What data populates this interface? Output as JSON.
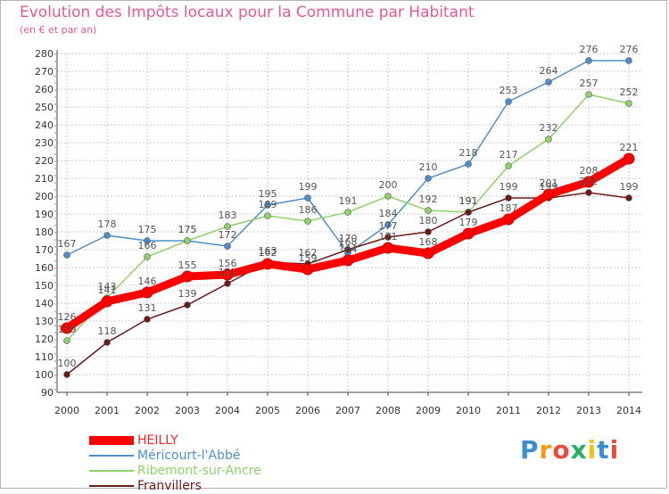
{
  "title": "Evolution des Impôts locaux pour la Commune par Habitant",
  "subtitle": "(en € et par an)",
  "logo": {
    "text": "Proxiti",
    "colors": [
      "#3b8ed6",
      "#f39c12",
      "#e74c3c",
      "#27ae60",
      "#f1c40f",
      "#3b8ed6",
      "#e74c3c"
    ]
  },
  "chart_data": {
    "type": "line",
    "x": [
      "2000",
      "2001",
      "2002",
      "2003",
      "2004",
      "2005",
      "2006",
      "2007",
      "2008",
      "2009",
      "2010",
      "2011",
      "2012",
      "2013",
      "2014"
    ],
    "ylim": [
      90,
      280
    ],
    "yticks": [
      90,
      100,
      110,
      120,
      130,
      140,
      150,
      160,
      170,
      180,
      190,
      200,
      210,
      220,
      230,
      240,
      250,
      260,
      270,
      280
    ],
    "grid": true,
    "legend_position": "bottom-left",
    "series": [
      {
        "name": "Méricourt-l'Abbé",
        "color": "#4f8fc9",
        "values": [
          167,
          178,
          175,
          175,
          172,
          195,
          199,
          168,
          184,
          210,
          218,
          253,
          264,
          276,
          276
        ]
      },
      {
        "name": "Ribemont-sur-Ancre",
        "color": "#8fd16a",
        "values": [
          119,
          143,
          166,
          175,
          183,
          189,
          186,
          191,
          200,
          192,
          191,
          217,
          232,
          257,
          252
        ]
      },
      {
        "name": "Franvillers",
        "color": "#6b1a1a",
        "values": [
          100,
          118,
          131,
          139,
          151,
          163,
          162,
          170,
          177,
          180,
          191,
          199,
          199,
          202,
          199
        ]
      },
      {
        "name": "HEILLY",
        "color": "#ff0000",
        "values": [
          126,
          141,
          146,
          155,
          156,
          162,
          159,
          164,
          171,
          168,
          179,
          187,
          201,
          208,
          221
        ]
      }
    ],
    "legend_order": [
      "HEILLY",
      "Méricourt-l'Abbé",
      "Ribemont-sur-Ancre",
      "Franvillers"
    ]
  }
}
